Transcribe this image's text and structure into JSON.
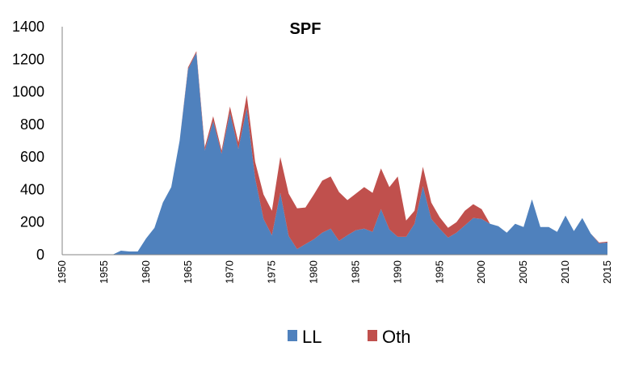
{
  "chart_data": {
    "type": "area",
    "stacked": true,
    "title": "SPF",
    "xlabel": "",
    "ylabel": "",
    "ylim": [
      0,
      1400
    ],
    "yticks": [
      0,
      200,
      400,
      600,
      800,
      1000,
      1200,
      1400
    ],
    "xlim": [
      1950,
      2015
    ],
    "xticks": [
      1950,
      1955,
      1960,
      1965,
      1970,
      1975,
      1980,
      1985,
      1990,
      1995,
      2000,
      2005,
      2010,
      2015
    ],
    "grid": false,
    "legend_position": "bottom",
    "x": [
      1950,
      1951,
      1952,
      1953,
      1954,
      1955,
      1956,
      1957,
      1958,
      1959,
      1960,
      1961,
      1962,
      1963,
      1964,
      1965,
      1966,
      1967,
      1968,
      1969,
      1970,
      1971,
      1972,
      1973,
      1974,
      1975,
      1976,
      1977,
      1978,
      1979,
      1980,
      1981,
      1982,
      1983,
      1984,
      1985,
      1986,
      1987,
      1988,
      1989,
      1990,
      1991,
      1992,
      1993,
      1994,
      1995,
      1996,
      1997,
      1998,
      1999,
      2000,
      2001,
      2002,
      2003,
      2004,
      2005,
      2006,
      2007,
      2008,
      2009,
      2010,
      2011,
      2012,
      2013,
      2014,
      2015
    ],
    "series": [
      {
        "name": "LL",
        "color": "#4F81BD",
        "values": [
          0,
          0,
          0,
          0,
          0,
          0,
          0,
          25,
          20,
          20,
          100,
          165,
          320,
          415,
          700,
          1140,
          1240,
          640,
          820,
          620,
          870,
          650,
          900,
          470,
          220,
          120,
          380,
          115,
          35,
          65,
          95,
          135,
          160,
          85,
          120,
          150,
          160,
          140,
          280,
          155,
          110,
          110,
          190,
          420,
          220,
          160,
          105,
          135,
          180,
          225,
          220,
          190,
          175,
          135,
          190,
          170,
          340,
          170,
          170,
          140,
          240,
          145,
          225,
          130,
          70,
          75
        ]
      },
      {
        "name": "Oth",
        "color": "#C0504D",
        "values": [
          0,
          0,
          0,
          0,
          0,
          0,
          0,
          0,
          0,
          0,
          0,
          0,
          0,
          0,
          0,
          10,
          10,
          20,
          30,
          20,
          40,
          40,
          80,
          100,
          150,
          150,
          220,
          260,
          250,
          225,
          275,
          320,
          320,
          300,
          215,
          225,
          255,
          240,
          250,
          260,
          370,
          100,
          80,
          120,
          100,
          70,
          60,
          65,
          90,
          85,
          60,
          0,
          0,
          0,
          0,
          0,
          0,
          0,
          0,
          0,
          0,
          0,
          0,
          0,
          5,
          5
        ]
      }
    ]
  }
}
